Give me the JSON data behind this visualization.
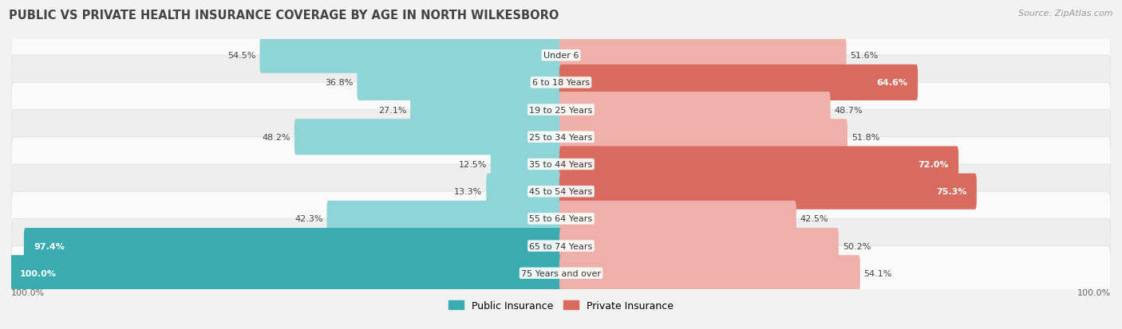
{
  "title": "PUBLIC VS PRIVATE HEALTH INSURANCE COVERAGE BY AGE IN NORTH WILKESBORO",
  "source": "Source: ZipAtlas.com",
  "categories": [
    "Under 6",
    "6 to 18 Years",
    "19 to 25 Years",
    "25 to 34 Years",
    "35 to 44 Years",
    "45 to 54 Years",
    "55 to 64 Years",
    "65 to 74 Years",
    "75 Years and over"
  ],
  "public_values": [
    54.5,
    36.8,
    27.1,
    48.2,
    12.5,
    13.3,
    42.3,
    97.4,
    100.0
  ],
  "private_values": [
    51.6,
    64.6,
    48.7,
    51.8,
    72.0,
    75.3,
    42.5,
    50.2,
    54.1
  ],
  "public_color_dark": "#3aacb0",
  "public_color_light": "#8fd4d7",
  "private_color_dark": "#d96b5e",
  "private_color_light": "#f0b0aa",
  "bg_color": "#f2f2f2",
  "row_bg_light": "#fafafa",
  "row_bg_dark": "#eeeeee",
  "max_value": 100.0,
  "title_fontsize": 10.5,
  "label_fontsize": 8,
  "value_fontsize": 8,
  "legend_fontsize": 9,
  "source_fontsize": 8,
  "high_threshold": 60
}
